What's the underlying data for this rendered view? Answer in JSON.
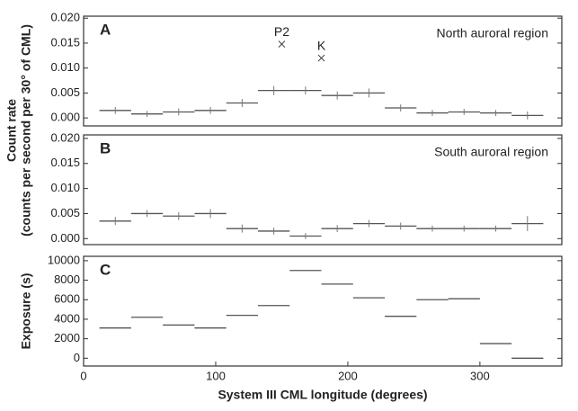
{
  "chart_data": [
    {
      "type": "histogram",
      "panel_label": "A",
      "annotation": "North auroral region",
      "ylabel": [
        "Count rate",
        "(counts per second per 30° of CML)"
      ],
      "xlim": [
        0,
        362
      ],
      "bins": [
        12,
        36,
        60,
        84,
        108,
        132,
        156,
        180,
        204,
        228,
        252,
        276,
        300,
        324,
        348
      ],
      "values": [
        0.0015,
        0.0008,
        0.0012,
        0.0015,
        0.003,
        0.0055,
        0.0055,
        0.0045,
        0.005,
        0.002,
        0.001,
        0.0012,
        0.001,
        0.0005
      ],
      "errors": [
        0.0007,
        0.0006,
        0.0007,
        0.0007,
        0.0008,
        0.0009,
        0.0008,
        0.0008,
        0.0009,
        0.0007,
        0.0006,
        0.0006,
        0.0006,
        0.0008
      ],
      "markers": [
        {
          "label": "P2",
          "x": 150,
          "y": 0.0148
        },
        {
          "label": "K",
          "x": 180,
          "y": 0.012
        }
      ],
      "ylim": [
        -0.0016,
        0.0204
      ],
      "yticks": [
        {
          "value": 0,
          "label": "0.000"
        },
        {
          "value": 0.005,
          "label": "0.005"
        },
        {
          "value": 0.01,
          "label": "0.010"
        },
        {
          "value": 0.015,
          "label": "0.015"
        },
        {
          "value": 0.02,
          "label": "0.020"
        }
      ]
    },
    {
      "type": "histogram",
      "panel_label": "B",
      "annotation": "South auroral region",
      "xlim": [
        0,
        362
      ],
      "bins": [
        12,
        36,
        60,
        84,
        108,
        132,
        156,
        180,
        204,
        228,
        252,
        276,
        300,
        324,
        348
      ],
      "values": [
        0.0035,
        0.005,
        0.0045,
        0.005,
        0.002,
        0.0015,
        0.0005,
        0.002,
        0.003,
        0.0025,
        0.002,
        0.002,
        0.002,
        0.003
      ],
      "errors": [
        0.0008,
        0.0007,
        0.0008,
        0.0009,
        0.0008,
        0.0007,
        0.0006,
        0.0007,
        0.0007,
        0.0007,
        0.0006,
        0.0006,
        0.0006,
        0.0015
      ],
      "ylim": [
        -0.0012,
        0.0207
      ],
      "yticks": [
        {
          "value": 0,
          "label": "0.000"
        },
        {
          "value": 0.005,
          "label": "0.005"
        },
        {
          "value": 0.01,
          "label": "0.010"
        },
        {
          "value": 0.015,
          "label": "0.015"
        },
        {
          "value": 0.02,
          "label": "0.020"
        }
      ]
    },
    {
      "type": "histogram",
      "panel_label": "C",
      "ylabel": [
        "Exposure (s)"
      ],
      "xlabel": "System III CML longitude (degrees)",
      "xlim": [
        0,
        362
      ],
      "xticks": [
        0,
        100,
        200,
        300
      ],
      "bins": [
        12,
        36,
        60,
        84,
        108,
        132,
        156,
        180,
        204,
        228,
        252,
        276,
        300,
        324,
        348
      ],
      "values": [
        3100,
        4200,
        3400,
        3100,
        4400,
        5400,
        9000,
        7600,
        6200,
        4300,
        6000,
        6100,
        1500,
        0
      ],
      "ylim": [
        -800,
        10450
      ],
      "yticks": [
        0,
        2000,
        4000,
        6000,
        8000,
        10000
      ]
    }
  ]
}
